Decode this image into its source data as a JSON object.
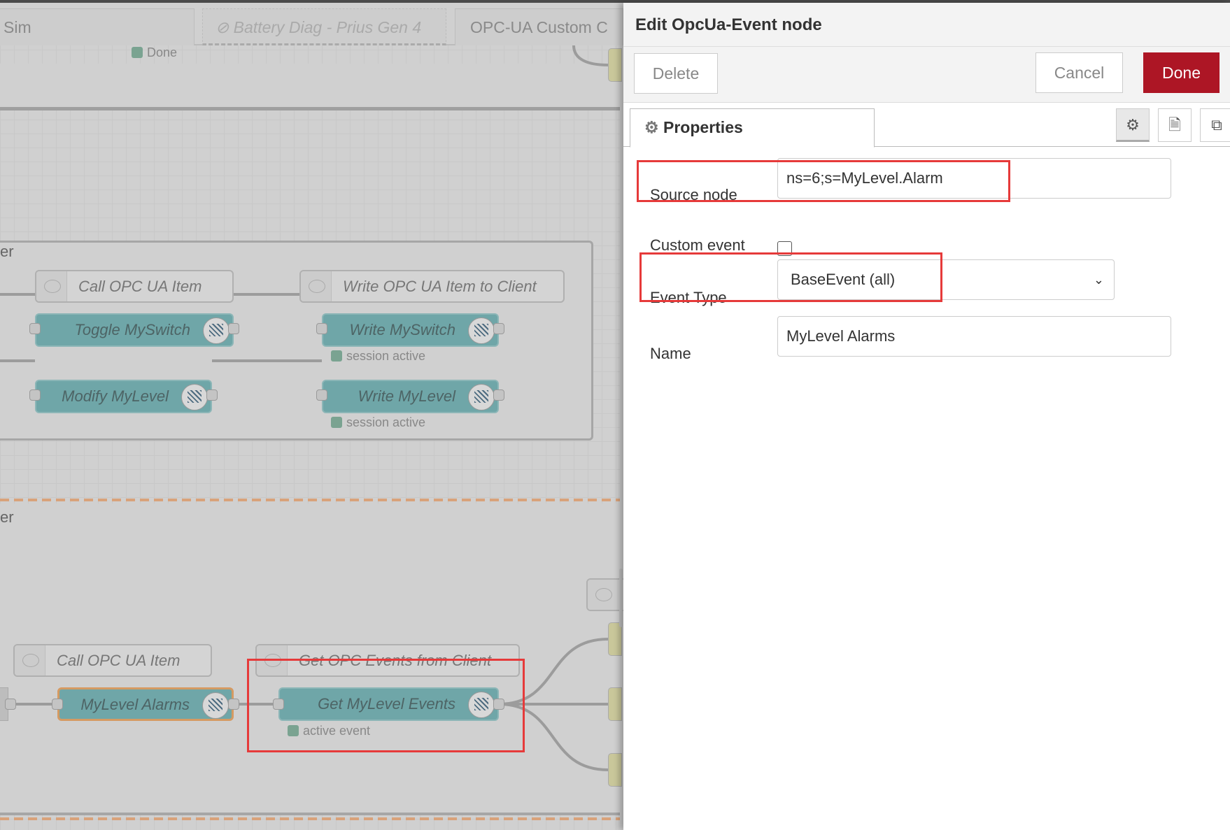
{
  "workspace_tabs": [
    {
      "label": "Sim",
      "disabled": false
    },
    {
      "label": "Battery Diag - Prius Gen 4",
      "disabled": true
    },
    {
      "label": "OPC-UA Custom C",
      "disabled": false
    }
  ],
  "canvas": {
    "top_status": "Done",
    "group_labels": [
      "er",
      "er"
    ],
    "comments": [
      "Call OPC UA Item",
      "Write OPC UA Item to Client",
      "Call OPC UA Item",
      "Get OPC Events from Client"
    ],
    "nodes": [
      "Toggle MySwitch",
      "Write MySwitch",
      "Modify MyLevel",
      "Write MyLevel",
      "MyLevel Alarms",
      "Get MyLevel Events"
    ],
    "node_icon_label": "OPC UA",
    "statuses": [
      "session active",
      "session active",
      "active event"
    ],
    "status_color": "#7aa391",
    "highlight_color": "#e63a3a"
  },
  "panel": {
    "title": "Edit OpcUa-Event node",
    "delete_label": "Delete",
    "cancel_label": "Cancel",
    "done_label": "Done",
    "done_color": "#ad1625",
    "tab_label": "Properties",
    "icons": [
      "gear-icon",
      "document-icon",
      "frame-icon"
    ],
    "fields": {
      "source_node_label": "Source node",
      "source_node_value": "ns=6;s=MyLevel.Alarm",
      "custom_event_label": "Custom event",
      "custom_event_checked": false,
      "event_type_label": "Event Type",
      "event_type_value": "BaseEvent (all)",
      "name_label": "Name",
      "name_value": "MyLevel Alarms"
    }
  }
}
